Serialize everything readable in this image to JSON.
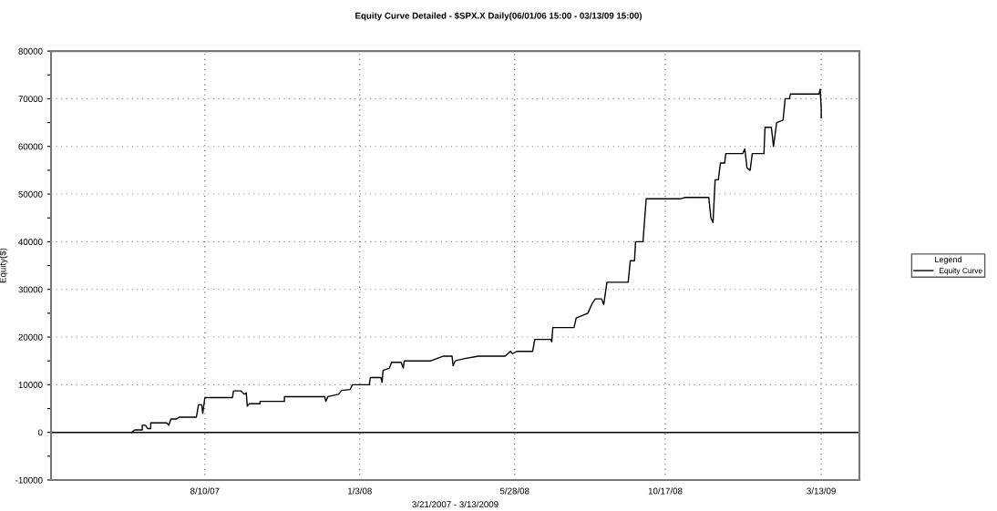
{
  "chart_data": {
    "type": "line",
    "title": "Equity Curve Detailed - $SPX.X Daily(06/01/06 15:00 - 03/13/09 15:00)",
    "xlabel": "3/21/2007 - 3/13/2009",
    "ylabel": "Equity($)",
    "legend_title": "Legend",
    "legend": "right",
    "grid": true,
    "marker": "none",
    "line_style": "solid",
    "xlim": [
      "2007-03-18",
      "2009-04-18"
    ],
    "xticks": [
      {
        "value": "2007-08-10",
        "label": "8/10/07"
      },
      {
        "value": "2008-01-03",
        "label": "1/3/08"
      },
      {
        "value": "2008-05-28",
        "label": "5/28/08"
      },
      {
        "value": "2008-10-17",
        "label": "10/17/08"
      },
      {
        "value": "2009-03-13",
        "label": "3/13/09"
      }
    ],
    "ylim": [
      -10000,
      80000
    ],
    "yticks": [
      -10000,
      {
        "value": -5000,
        "label": null
      },
      0,
      {
        "value": 5000,
        "label": null
      },
      10000,
      {
        "value": 15000,
        "label": null
      },
      20000,
      {
        "value": 25000,
        "label": null
      },
      30000,
      {
        "value": 35000,
        "label": null
      },
      40000,
      {
        "value": 45000,
        "label": null
      },
      50000,
      {
        "value": 55000,
        "label": null
      },
      60000,
      {
        "value": 65000,
        "label": null
      },
      70000,
      {
        "value": 75000,
        "label": null
      },
      80000
    ],
    "ref_lines": [
      {
        "axis": "y",
        "value": 0,
        "label": null,
        "color": "#000000",
        "line_style": "solid"
      }
    ],
    "series": [
      {
        "name": "Equity Curve",
        "color": "#000000",
        "x": [
          "2007-06-02",
          "2007-06-05",
          "2007-06-12",
          "2007-06-12",
          "2007-06-15",
          "2007-06-17",
          "2007-06-20",
          "2007-06-20",
          "2007-07-05",
          "2007-07-07",
          "2007-07-09",
          "2007-07-14",
          "2007-07-17",
          "2007-08-02",
          "2007-08-04",
          "2007-08-07",
          "2007-08-08",
          "2007-08-10",
          "2007-08-23",
          "2007-09-05",
          "2007-09-06",
          "2007-09-13",
          "2007-09-16",
          "2007-09-18",
          "2007-09-19",
          "2007-09-21",
          "2007-10-01",
          "2007-10-01",
          "2007-10-24",
          "2007-10-24",
          "2007-12-01",
          "2007-12-02",
          "2007-12-04",
          "2007-12-14",
          "2007-12-17",
          "2007-12-25",
          "2007-12-27",
          "2008-01-12",
          "2008-01-13",
          "2008-01-23",
          "2008-01-24",
          "2008-01-25",
          "2008-01-31",
          "2008-02-02",
          "2008-02-11",
          "2008-02-13",
          "2008-02-14",
          "2008-03-10",
          "2008-03-22",
          "2008-03-30",
          "2008-03-31",
          "2008-04-02",
          "2008-04-11",
          "2008-04-24",
          "2008-05-19",
          "2008-05-24",
          "2008-05-26",
          "2008-05-30",
          "2008-06-14",
          "2008-06-16",
          "2008-07-01",
          "2008-07-02",
          "2008-07-03",
          "2008-07-23",
          "2008-07-25",
          "2008-08-05",
          "2008-08-09",
          "2008-08-12",
          "2008-08-18",
          "2008-08-20",
          "2008-08-23",
          "2008-09-12",
          "2008-09-14",
          "2008-09-18",
          "2008-09-19",
          "2008-09-26",
          "2008-09-29",
          "2008-10-31",
          "2008-11-05",
          "2008-11-27",
          "2008-11-29",
          "2008-12-01",
          "2008-12-03",
          "2008-12-06",
          "2008-12-08",
          "2008-12-12",
          "2008-12-13",
          "2008-12-29",
          "2008-12-31",
          "2009-01-02",
          "2009-01-05",
          "2009-01-07",
          "2009-01-18",
          "2009-01-19",
          "2009-01-25",
          "2009-01-27",
          "2009-01-30",
          "2009-02-05",
          "2009-02-07",
          "2009-02-11",
          "2009-02-12",
          "2009-03-11",
          "2009-03-12",
          "2009-03-13",
          "2009-03-13"
        ],
        "values": [
          0,
          500,
          500,
          1500,
          1500,
          800,
          800,
          2000,
          2000,
          1500,
          2800,
          2800,
          3200,
          3200,
          5800,
          5800,
          4000,
          7300,
          7300,
          7300,
          8700,
          8700,
          8000,
          8300,
          5500,
          6000,
          6000,
          6500,
          6500,
          7500,
          7500,
          6500,
          7500,
          8000,
          8800,
          9000,
          10000,
          10000,
          11500,
          11500,
          10500,
          13000,
          13500,
          14700,
          14700,
          13500,
          15000,
          15000,
          16000,
          16000,
          14000,
          15000,
          15500,
          16000,
          16000,
          17000,
          16500,
          17000,
          17000,
          19500,
          19500,
          19000,
          22000,
          22000,
          24000,
          25000,
          27000,
          28000,
          28000,
          26800,
          31500,
          31500,
          36000,
          36000,
          40000,
          40000,
          49000,
          49000,
          49300,
          49300,
          45000,
          44000,
          53000,
          53000,
          56500,
          56500,
          58500,
          58500,
          59500,
          55500,
          55000,
          58500,
          58500,
          64000,
          64000,
          60000,
          65000,
          65500,
          70000,
          70000,
          71000,
          71000,
          72000,
          68000,
          66000
        ]
      }
    ]
  }
}
